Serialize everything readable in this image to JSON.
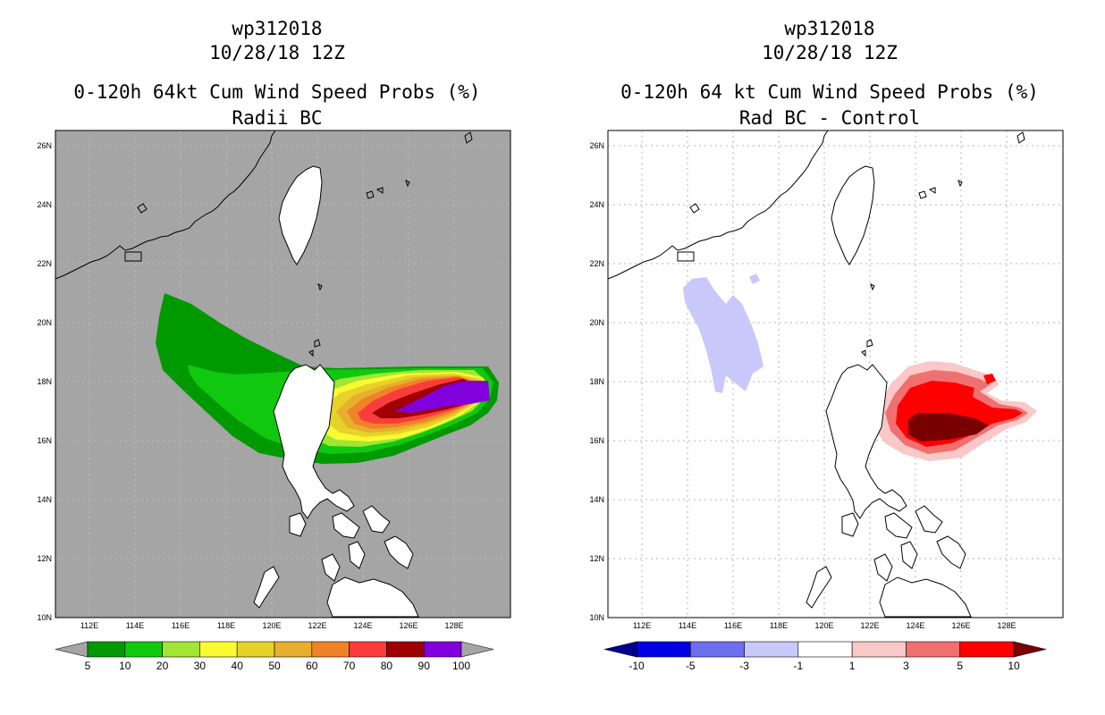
{
  "left": {
    "storm_id": "wp312018",
    "datetime": "10/28/18 12Z",
    "product": "0-120h 64kt Cum Wind Speed Probs (%)",
    "subtitle": "Radii BC",
    "colorbar": {
      "labels": [
        "5",
        "10",
        "20",
        "30",
        "40",
        "50",
        "60",
        "70",
        "80",
        "90",
        "100"
      ],
      "colors": [
        "#009a00",
        "#10c810",
        "#a0e632",
        "#fafa32",
        "#e6d228",
        "#e6af2d",
        "#f08228",
        "#fa3c3c",
        "#a00000",
        "#8200dc"
      ],
      "under_color": "#a5a5a5",
      "over_color": "#a5a5a5"
    }
  },
  "right": {
    "storm_id": "wp312018",
    "datetime": "10/28/18 12Z",
    "product": "0-120h 64 kt Cum Wind Speed Probs (%)",
    "subtitle": "Rad BC - Control",
    "colorbar": {
      "labels": [
        "-10",
        "-5",
        "-3",
        "-1",
        "1",
        "3",
        "5",
        "10"
      ],
      "colors": [
        "#0000e6",
        "#6e6ef0",
        "#c8c8fa",
        "#ffffff",
        "#fac8c8",
        "#f07070",
        "#ff0000"
      ],
      "under_color": "#00008c",
      "over_color": "#780000"
    }
  },
  "map": {
    "lon_labels": [
      "112E",
      "114E",
      "116E",
      "118E",
      "120E",
      "122E",
      "124E",
      "126E",
      "128E"
    ],
    "lat_labels": [
      "10N",
      "12N",
      "14N",
      "16N",
      "18N",
      "20N",
      "22N",
      "24N",
      "26N"
    ],
    "land_fill_left": "#a5a5a5",
    "coast_color": "#000000"
  }
}
